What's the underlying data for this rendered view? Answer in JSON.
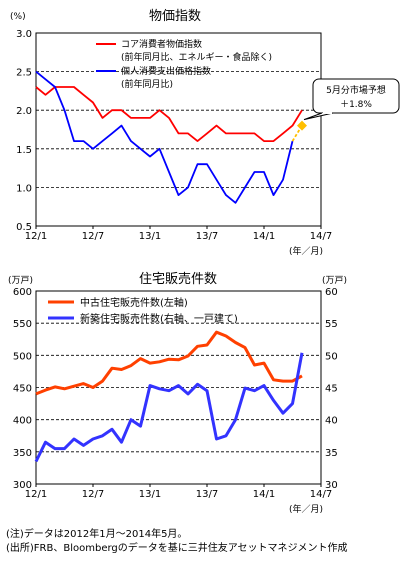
{
  "charts": [
    {
      "title": "物価指数",
      "y_unit": "(%)",
      "x_unit": "(年／月)",
      "legend": [
        "コア消費者物価指数",
        "(前年同月比、エネルギー・食品除く)",
        "個人消費支出価格指数",
        "(前年同月比)"
      ],
      "callout": [
        "5月分市場予想",
        "＋1.8%"
      ]
    },
    {
      "title": "住宅販売件数",
      "y_unit_left": "(万戸)",
      "y_unit_right": "(万戸)",
      "x_unit": "(年／月)",
      "legend": [
        "中古住宅販売件数(左軸)",
        "新築住宅販売件数(右軸、一戸建て)"
      ]
    }
  ],
  "notes": [
    "(注)データは2012年1月～2014年5月。",
    "(出所)FRB、Bloombergのデータを基に三井住友アセットマネジメント作成"
  ],
  "chart_data": [
    {
      "type": "line",
      "title": "物価指数",
      "x": [
        "12/1",
        "12/2",
        "12/3",
        "12/4",
        "12/5",
        "12/6",
        "12/7",
        "12/8",
        "12/9",
        "12/10",
        "12/11",
        "12/12",
        "13/1",
        "13/2",
        "13/3",
        "13/4",
        "13/5",
        "13/6",
        "13/7",
        "13/8",
        "13/9",
        "13/10",
        "13/11",
        "13/12",
        "14/1",
        "14/2",
        "14/3",
        "14/4",
        "14/5"
      ],
      "xticks": [
        "12/1",
        "12/7",
        "13/1",
        "13/7",
        "14/1",
        "14/7"
      ],
      "xunit": "(年／月)",
      "ylabel": "(%)",
      "ylim": [
        0.5,
        3.0
      ],
      "yticks": [
        0.5,
        1.0,
        1.5,
        2.0,
        2.5,
        3.0
      ],
      "series": [
        {
          "name": "コア消費者物価指数",
          "color": "#ff0000",
          "values": [
            2.3,
            2.2,
            2.3,
            2.3,
            2.3,
            2.2,
            2.1,
            1.9,
            2.0,
            2.0,
            1.9,
            1.9,
            1.9,
            2.0,
            1.9,
            1.7,
            1.7,
            1.6,
            1.7,
            1.8,
            1.7,
            1.7,
            1.7,
            1.7,
            1.6,
            1.6,
            1.7,
            1.8,
            2.0
          ]
        },
        {
          "name": "個人消費支出価格指数",
          "color": "#0000ff",
          "values": [
            2.5,
            2.4,
            2.3,
            2.0,
            1.6,
            1.6,
            1.5,
            1.6,
            1.7,
            1.8,
            1.6,
            1.5,
            1.4,
            1.5,
            1.2,
            0.9,
            1.0,
            1.3,
            1.3,
            1.1,
            0.9,
            0.8,
            1.0,
            1.2,
            1.2,
            0.9,
            1.1,
            1.6,
            null
          ]
        },
        {
          "name": "5月分市場予想",
          "color": "#ffbf00",
          "style": "dashed",
          "values": [
            null,
            null,
            null,
            null,
            null,
            null,
            null,
            null,
            null,
            null,
            null,
            null,
            null,
            null,
            null,
            null,
            null,
            null,
            null,
            null,
            null,
            null,
            null,
            null,
            null,
            null,
            null,
            1.6,
            1.8
          ]
        }
      ],
      "annotation": {
        "text": "5月分市場予想 ＋1.8%",
        "x": "14/5",
        "y": 1.8
      },
      "grid": "dashed horizontal"
    },
    {
      "type": "line",
      "title": "住宅販売件数",
      "x": [
        "12/1",
        "12/2",
        "12/3",
        "12/4",
        "12/5",
        "12/6",
        "12/7",
        "12/8",
        "12/9",
        "12/10",
        "12/11",
        "12/12",
        "13/1",
        "13/2",
        "13/3",
        "13/4",
        "13/5",
        "13/6",
        "13/7",
        "13/8",
        "13/9",
        "13/10",
        "13/11",
        "13/12",
        "14/1",
        "14/2",
        "14/3",
        "14/4",
        "14/5"
      ],
      "xticks": [
        "12/1",
        "12/7",
        "13/1",
        "13/7",
        "14/1",
        "14/7"
      ],
      "xunit": "(年／月)",
      "ylabel_left": "(万戸)",
      "ylabel_right": "(万戸)",
      "ylim_left": [
        300,
        600
      ],
      "ylim_right": [
        30,
        60
      ],
      "yticks_left": [
        300,
        350,
        400,
        450,
        500,
        550,
        600
      ],
      "yticks_right": [
        30,
        35,
        40,
        45,
        50,
        55,
        60
      ],
      "series": [
        {
          "name": "中古住宅販売件数(左軸)",
          "axis": "left",
          "color": "#ff4000",
          "values": [
            440,
            446,
            451,
            448,
            452,
            456,
            450,
            460,
            480,
            478,
            484,
            495,
            488,
            490,
            494,
            493,
            499,
            514,
            516,
            536,
            530,
            520,
            512,
            485,
            488,
            462,
            460,
            460,
            468
          ]
        },
        {
          "name": "新築住宅販売件数(右軸、一戸建て)",
          "axis": "right",
          "color": "#3333ff",
          "values": [
            33.5,
            36.5,
            35.5,
            35.5,
            37.0,
            36.0,
            37.0,
            37.5,
            38.5,
            36.5,
            40.0,
            39.0,
            45.3,
            44.8,
            44.5,
            45.3,
            44.0,
            45.5,
            44.5,
            37.0,
            37.5,
            40.0,
            44.9,
            44.5,
            45.3,
            43.0,
            41.0,
            42.5,
            50.4
          ]
        }
      ],
      "grid": "dashed horizontal"
    }
  ]
}
